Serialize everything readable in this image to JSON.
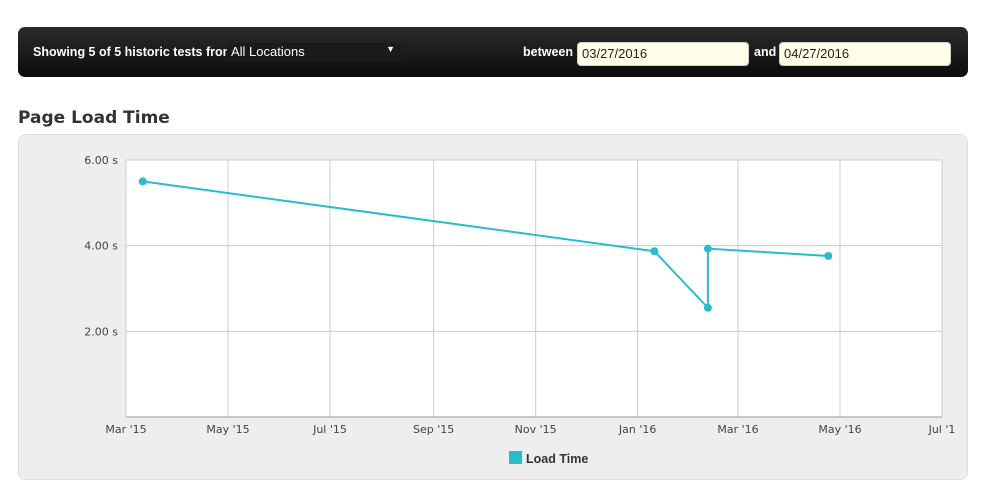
{
  "filters": {
    "showing_label": "Showing 5 of 5 historic tests from",
    "location_selected": "All Locations",
    "between_label": "between",
    "start_date": "03/27/2016",
    "and_label": "and",
    "end_date": "04/27/2016"
  },
  "section": {
    "title": "Page Load Time"
  },
  "chart_data": {
    "type": "line",
    "title": "",
    "xlabel": "",
    "ylabel": "",
    "x_ticks": [
      "Mar '15",
      "May '15",
      "Jul '15",
      "Sep '15",
      "Nov '15",
      "Jan '16",
      "Mar '16",
      "May '16",
      "Jul '1"
    ],
    "y_ticks": [
      "2.00 s",
      "4.00 s",
      "6.00 s"
    ],
    "xlim": [
      "2015-03-01",
      "2016-07-01"
    ],
    "ylim": [
      0,
      6
    ],
    "grid": true,
    "legend_position": "bottom-center",
    "series": [
      {
        "name": "Load Time",
        "color": "#2bbccc",
        "points": [
          {
            "x": "2015-03-11",
            "y": 5.5
          },
          {
            "x": "2016-01-11",
            "y": 3.87
          },
          {
            "x": "2016-02-12",
            "y": 2.55
          },
          {
            "x": "2016-02-12",
            "y": 3.93
          },
          {
            "x": "2016-04-24",
            "y": 3.76
          }
        ]
      }
    ]
  }
}
